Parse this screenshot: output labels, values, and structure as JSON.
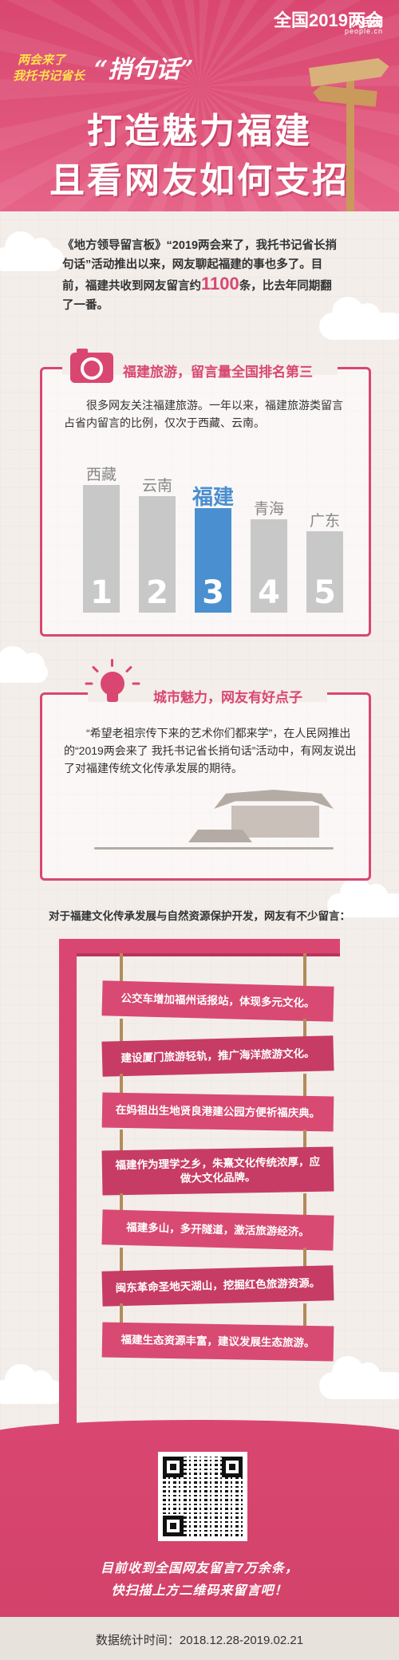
{
  "header": {
    "brand_title": "全国2019两会",
    "brand_logo": "人民网",
    "brand_url": "people.cn",
    "sub_a": "两会来了",
    "sub_b": "我托书记省长",
    "sub_c": "“捎句话”",
    "title_line1": "打造魅力福建",
    "title_line2": "且看网友如何支招"
  },
  "intro": {
    "text_a": "《地方领导留言板》“2019两会来了，我托书记省长捎句话”活动推出以来，网友聊起福建的事也多了。目前，福建共收到网友留言约",
    "number": "1100",
    "text_b": "条，比去年同期翻了一番。"
  },
  "card1": {
    "icon": "camera-icon",
    "title": "福建旅游，留言量全国排名第三",
    "text": "很多网友关注福建旅游。一年以来，福建旅游类留言占省内留言的比例，仅次于西藏、云南。"
  },
  "chart_data": {
    "type": "bar",
    "categories": [
      "西藏",
      "云南",
      "福建",
      "青海",
      "广东"
    ],
    "ranks": [
      "1",
      "2",
      "3",
      "4",
      "5"
    ],
    "values": [
      5,
      4,
      3,
      2,
      1
    ],
    "highlight": "福建",
    "colors": {
      "default": "#c8c8c8",
      "highlight": "#4a8fd0"
    }
  },
  "card2": {
    "icon": "lightbulb-icon",
    "title": "城市魅力，网友有好点子",
    "text": "“希望老祖宗传下来的艺术你们都来学”，在人民网推出的“2019两会来了 我托书记省长捎句话”活动中，有网友说出了对福建传统文化传承发展的期待。"
  },
  "section3": {
    "caption": "对于福建文化传承发展与自然资源保护开发，网友有不少留言：",
    "planks": [
      "公交车增加福州话报站，体现多元文化。",
      "建设厦门旅游轻轨，推广海洋旅游文化。",
      "在妈祖出生地贤良港建公园方便祈福庆典。",
      "福建作为理学之乡，朱熹文化传统浓厚，应做大文化品牌。",
      "福建多山，多开隧道，激活旅游经济。",
      "闽东革命圣地天湖山，挖掘红色旅游资源。",
      "福建生态资源丰富，建议发展生态旅游。"
    ]
  },
  "footer": {
    "qr_icon": "qr-code-icon",
    "line1": "目前收到全国网友留言7万余条，",
    "line2": "快扫描上方二维码来留言吧！",
    "date": "数据统计时间：2018.12.28-2019.02.21"
  },
  "colors": {
    "brand_pink": "#d94770",
    "accent_yellow": "#ffe14d",
    "highlight_blue": "#4a8fd0"
  }
}
